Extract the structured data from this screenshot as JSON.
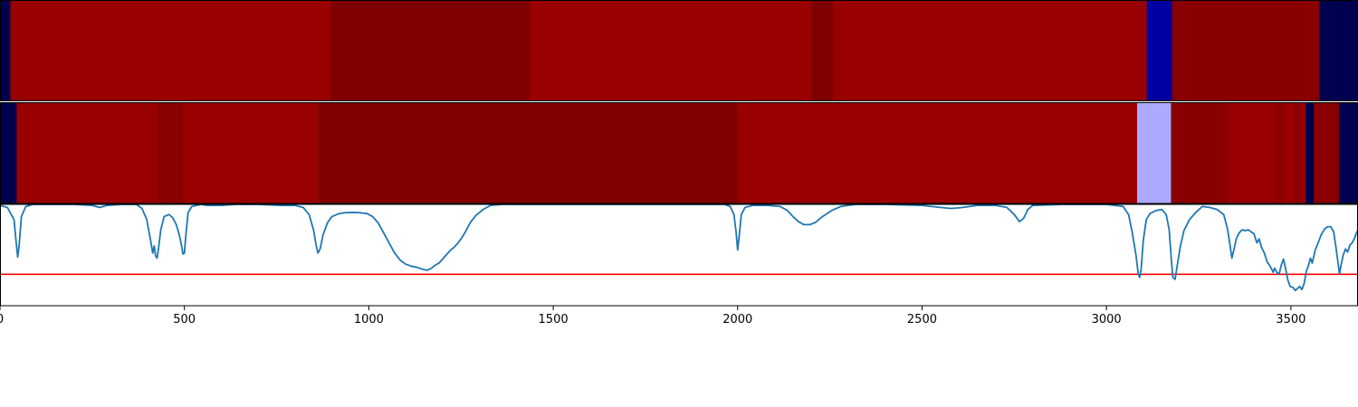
{
  "chart_data": {
    "type": "heatmap",
    "x_range": [
      0,
      3682
    ],
    "y_range": [
      0,
      1
    ],
    "grid": false,
    "legend": "none",
    "xticks": [
      0,
      500,
      1000,
      1500,
      2000,
      2500,
      3000,
      3500
    ],
    "xtick_labels": [
      "0",
      "500",
      "1000",
      "1500",
      "2000",
      "2500",
      "3000",
      "3500"
    ],
    "heatmap_rows": [
      {
        "segments": [
          {
            "start": 0,
            "end": 28,
            "color": "#000050"
          },
          {
            "start": 28,
            "end": 896,
            "color": "#990000"
          },
          {
            "start": 896,
            "end": 1436,
            "color": "#7f0000"
          },
          {
            "start": 1436,
            "end": 2200,
            "color": "#990000"
          },
          {
            "start": 2200,
            "end": 2258,
            "color": "#7f0000"
          },
          {
            "start": 2258,
            "end": 3109,
            "color": "#990000"
          },
          {
            "start": 3109,
            "end": 3178,
            "color": "#0000a0"
          },
          {
            "start": 3178,
            "end": 3577,
            "color": "#8a0000"
          },
          {
            "start": 3577,
            "end": 3682,
            "color": "#000050"
          }
        ]
      },
      {
        "segments": [
          {
            "start": 0,
            "end": 45,
            "color": "#000050"
          },
          {
            "start": 45,
            "end": 428,
            "color": "#990000"
          },
          {
            "start": 428,
            "end": 496,
            "color": "#8a0000"
          },
          {
            "start": 496,
            "end": 864,
            "color": "#990000"
          },
          {
            "start": 864,
            "end": 1998,
            "color": "#7f0000"
          },
          {
            "start": 1998,
            "end": 3083,
            "color": "#990000"
          },
          {
            "start": 3083,
            "end": 3175,
            "color": "#aaaaff"
          },
          {
            "start": 3175,
            "end": 3330,
            "color": "#8a0000"
          },
          {
            "start": 3330,
            "end": 3462,
            "color": "#990000"
          },
          {
            "start": 3462,
            "end": 3480,
            "color": "#8a0000"
          },
          {
            "start": 3480,
            "end": 3510,
            "color": "#990000"
          },
          {
            "start": 3510,
            "end": 3525,
            "color": "#8a0000"
          },
          {
            "start": 3525,
            "end": 3540,
            "color": "#990000"
          },
          {
            "start": 3540,
            "end": 3562,
            "color": "#000050"
          },
          {
            "start": 3562,
            "end": 3630,
            "color": "#8a0000"
          },
          {
            "start": 3630,
            "end": 3682,
            "color": "#000050"
          }
        ]
      }
    ],
    "line_panel": {
      "y_range": [
        0,
        1
      ],
      "threshold": 0.31,
      "threshold_color": "#ff0000",
      "line_color": "#1f77b4",
      "points": [
        [
          0,
          0.99
        ],
        [
          20,
          0.97
        ],
        [
          38,
          0.85
        ],
        [
          44,
          0.62
        ],
        [
          48,
          0.48
        ],
        [
          52,
          0.6
        ],
        [
          58,
          0.88
        ],
        [
          70,
          0.98
        ],
        [
          90,
          1.0
        ],
        [
          200,
          1.0
        ],
        [
          250,
          0.99
        ],
        [
          270,
          0.97
        ],
        [
          290,
          0.99
        ],
        [
          330,
          1.0
        ],
        [
          370,
          1.0
        ],
        [
          385,
          0.96
        ],
        [
          398,
          0.85
        ],
        [
          408,
          0.65
        ],
        [
          414,
          0.52
        ],
        [
          418,
          0.59
        ],
        [
          422,
          0.49
        ],
        [
          426,
          0.47
        ],
        [
          430,
          0.57
        ],
        [
          436,
          0.75
        ],
        [
          445,
          0.88
        ],
        [
          458,
          0.9
        ],
        [
          468,
          0.87
        ],
        [
          478,
          0.8
        ],
        [
          486,
          0.7
        ],
        [
          492,
          0.6
        ],
        [
          496,
          0.51
        ],
        [
          500,
          0.52
        ],
        [
          504,
          0.7
        ],
        [
          510,
          0.92
        ],
        [
          520,
          0.98
        ],
        [
          545,
          1.0
        ],
        [
          560,
          0.99
        ],
        [
          600,
          0.99
        ],
        [
          640,
          1.0
        ],
        [
          700,
          1.0
        ],
        [
          760,
          0.99
        ],
        [
          800,
          0.99
        ],
        [
          822,
          0.97
        ],
        [
          838,
          0.9
        ],
        [
          850,
          0.75
        ],
        [
          857,
          0.6
        ],
        [
          862,
          0.52
        ],
        [
          868,
          0.56
        ],
        [
          876,
          0.7
        ],
        [
          888,
          0.82
        ],
        [
          900,
          0.88
        ],
        [
          920,
          0.91
        ],
        [
          940,
          0.92
        ],
        [
          970,
          0.92
        ],
        [
          995,
          0.91
        ],
        [
          1010,
          0.88
        ],
        [
          1025,
          0.82
        ],
        [
          1040,
          0.72
        ],
        [
          1055,
          0.62
        ],
        [
          1070,
          0.52
        ],
        [
          1085,
          0.45
        ],
        [
          1100,
          0.41
        ],
        [
          1115,
          0.39
        ],
        [
          1130,
          0.38
        ],
        [
          1145,
          0.36
        ],
        [
          1158,
          0.35
        ],
        [
          1170,
          0.37
        ],
        [
          1180,
          0.4
        ],
        [
          1190,
          0.42
        ],
        [
          1200,
          0.46
        ],
        [
          1212,
          0.51
        ],
        [
          1222,
          0.55
        ],
        [
          1232,
          0.58
        ],
        [
          1242,
          0.62
        ],
        [
          1252,
          0.67
        ],
        [
          1262,
          0.73
        ],
        [
          1275,
          0.82
        ],
        [
          1290,
          0.89
        ],
        [
          1310,
          0.95
        ],
        [
          1330,
          0.99
        ],
        [
          1360,
          1.0
        ],
        [
          1500,
          1.0
        ],
        [
          1700,
          1.0
        ],
        [
          1900,
          1.0
        ],
        [
          1965,
          1.0
        ],
        [
          1980,
          0.98
        ],
        [
          1990,
          0.9
        ],
        [
          1996,
          0.72
        ],
        [
          2000,
          0.55
        ],
        [
          2004,
          0.68
        ],
        [
          2010,
          0.9
        ],
        [
          2020,
          0.97
        ],
        [
          2040,
          0.99
        ],
        [
          2080,
          0.99
        ],
        [
          2115,
          0.98
        ],
        [
          2135,
          0.94
        ],
        [
          2150,
          0.88
        ],
        [
          2165,
          0.83
        ],
        [
          2180,
          0.8
        ],
        [
          2195,
          0.8
        ],
        [
          2210,
          0.82
        ],
        [
          2230,
          0.88
        ],
        [
          2255,
          0.94
        ],
        [
          2280,
          0.98
        ],
        [
          2320,
          1.0
        ],
        [
          2400,
          1.0
        ],
        [
          2500,
          0.99
        ],
        [
          2550,
          0.97
        ],
        [
          2580,
          0.96
        ],
        [
          2610,
          0.97
        ],
        [
          2650,
          0.99
        ],
        [
          2700,
          0.99
        ],
        [
          2730,
          0.97
        ],
        [
          2750,
          0.9
        ],
        [
          2764,
          0.83
        ],
        [
          2775,
          0.86
        ],
        [
          2787,
          0.95
        ],
        [
          2800,
          0.99
        ],
        [
          2880,
          1.0
        ],
        [
          3000,
          1.0
        ],
        [
          3045,
          0.98
        ],
        [
          3060,
          0.9
        ],
        [
          3070,
          0.72
        ],
        [
          3080,
          0.5
        ],
        [
          3086,
          0.32
        ],
        [
          3090,
          0.28
        ],
        [
          3094,
          0.36
        ],
        [
          3100,
          0.65
        ],
        [
          3108,
          0.85
        ],
        [
          3118,
          0.91
        ],
        [
          3135,
          0.94
        ],
        [
          3150,
          0.95
        ],
        [
          3162,
          0.9
        ],
        [
          3170,
          0.75
        ],
        [
          3176,
          0.45
        ],
        [
          3180,
          0.28
        ],
        [
          3186,
          0.26
        ],
        [
          3192,
          0.4
        ],
        [
          3200,
          0.58
        ],
        [
          3210,
          0.74
        ],
        [
          3225,
          0.85
        ],
        [
          3242,
          0.92
        ],
        [
          3260,
          0.98
        ],
        [
          3280,
          0.97
        ],
        [
          3300,
          0.95
        ],
        [
          3318,
          0.9
        ],
        [
          3328,
          0.76
        ],
        [
          3335,
          0.6
        ],
        [
          3340,
          0.47
        ],
        [
          3346,
          0.56
        ],
        [
          3352,
          0.66
        ],
        [
          3360,
          0.72
        ],
        [
          3368,
          0.75
        ],
        [
          3376,
          0.74
        ],
        [
          3384,
          0.75
        ],
        [
          3392,
          0.73
        ],
        [
          3400,
          0.71
        ],
        [
          3408,
          0.62
        ],
        [
          3414,
          0.66
        ],
        [
          3420,
          0.58
        ],
        [
          3428,
          0.52
        ],
        [
          3436,
          0.43
        ],
        [
          3442,
          0.4
        ],
        [
          3448,
          0.36
        ],
        [
          3452,
          0.33
        ],
        [
          3456,
          0.37
        ],
        [
          3462,
          0.33
        ],
        [
          3468,
          0.31
        ],
        [
          3474,
          0.4
        ],
        [
          3480,
          0.46
        ],
        [
          3486,
          0.36
        ],
        [
          3492,
          0.25
        ],
        [
          3498,
          0.19
        ],
        [
          3506,
          0.18
        ],
        [
          3512,
          0.15
        ],
        [
          3518,
          0.17
        ],
        [
          3524,
          0.19
        ],
        [
          3530,
          0.16
        ],
        [
          3536,
          0.22
        ],
        [
          3542,
          0.34
        ],
        [
          3548,
          0.4
        ],
        [
          3553,
          0.47
        ],
        [
          3558,
          0.42
        ],
        [
          3566,
          0.55
        ],
        [
          3574,
          0.62
        ],
        [
          3582,
          0.7
        ],
        [
          3592,
          0.76
        ],
        [
          3600,
          0.78
        ],
        [
          3608,
          0.78
        ],
        [
          3616,
          0.73
        ],
        [
          3622,
          0.58
        ],
        [
          3628,
          0.42
        ],
        [
          3632,
          0.31
        ],
        [
          3636,
          0.4
        ],
        [
          3642,
          0.5
        ],
        [
          3648,
          0.56
        ],
        [
          3654,
          0.53
        ],
        [
          3660,
          0.6
        ],
        [
          3666,
          0.62
        ],
        [
          3672,
          0.66
        ],
        [
          3678,
          0.72
        ],
        [
          3682,
          0.75
        ]
      ]
    }
  }
}
